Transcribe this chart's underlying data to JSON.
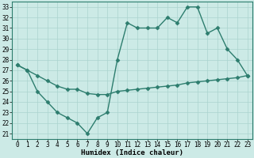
{
  "line1_x": [
    0,
    1,
    2,
    3,
    4,
    5,
    6,
    7,
    8,
    9,
    10,
    11,
    12,
    13,
    14,
    15,
    16,
    17,
    18,
    19,
    20,
    21,
    22,
    23
  ],
  "line1_y": [
    27.5,
    27.0,
    25.0,
    24.0,
    23.0,
    22.5,
    22.0,
    21.0,
    22.5,
    23.0,
    28.0,
    31.5,
    31.0,
    31.0,
    31.0,
    32.0,
    31.5,
    33.0,
    33.0,
    30.5,
    31.0,
    29.0,
    28.0,
    26.5
  ],
  "line2_x": [
    0,
    1,
    2,
    3,
    4,
    5,
    6,
    7,
    8,
    9,
    10,
    11,
    12,
    13,
    14,
    15,
    16,
    17,
    18,
    19,
    20,
    21,
    22,
    23
  ],
  "line2_y": [
    27.5,
    27.0,
    26.5,
    26.0,
    25.5,
    25.2,
    25.2,
    24.8,
    24.7,
    24.7,
    25.0,
    25.1,
    25.2,
    25.3,
    25.4,
    25.5,
    25.6,
    25.8,
    25.9,
    26.0,
    26.1,
    26.2,
    26.3,
    26.5
  ],
  "line_color": "#2d7d6e",
  "bg_color": "#cceae6",
  "grid_color": "#aad4ce",
  "xlabel": "Humidex (Indice chaleur)",
  "xlim": [
    -0.5,
    23.5
  ],
  "ylim": [
    20.5,
    33.5
  ],
  "yticks": [
    21,
    22,
    23,
    24,
    25,
    26,
    27,
    28,
    29,
    30,
    31,
    32,
    33
  ],
  "xticks": [
    0,
    1,
    2,
    3,
    4,
    5,
    6,
    7,
    8,
    9,
    10,
    11,
    12,
    13,
    14,
    15,
    16,
    17,
    18,
    19,
    20,
    21,
    22,
    23
  ],
  "marker": "D",
  "markersize": 2.5,
  "linewidth": 1.0,
  "label_fontsize": 6.5,
  "tick_fontsize": 5.5
}
